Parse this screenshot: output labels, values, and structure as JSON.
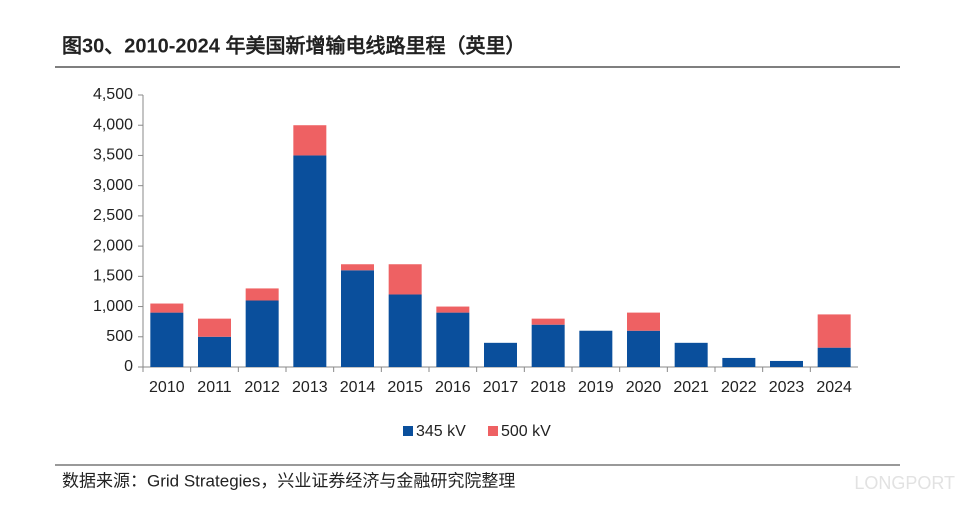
{
  "chart_data": {
    "type": "bar",
    "stacked": true,
    "title": "图30、2010-2024 年美国新增输电线路里程（英里）",
    "source": "数据来源：Grid Strategies，兴业证券经济与金融研究院整理",
    "watermark": "LONGPORT",
    "categories": [
      "2010",
      "2011",
      "2012",
      "2013",
      "2014",
      "2015",
      "2016",
      "2017",
      "2018",
      "2019",
      "2020",
      "2021",
      "2022",
      "2023",
      "2024"
    ],
    "series": [
      {
        "name": "345 kV",
        "color": "#0a4f9c",
        "values": [
          900,
          500,
          1100,
          3500,
          1600,
          1200,
          900,
          400,
          700,
          600,
          600,
          400,
          150,
          100,
          320
        ]
      },
      {
        "name": "500 kV",
        "color": "#ee6163",
        "values": [
          150,
          300,
          200,
          500,
          100,
          500,
          100,
          0,
          100,
          0,
          300,
          0,
          0,
          0,
          550
        ]
      }
    ],
    "ylim": [
      0,
      4500
    ],
    "yticks": [
      0,
      500,
      {
        "value": 1000,
        "label": "1,000"
      },
      {
        "value": 1500,
        "label": "1,500"
      },
      {
        "value": 2000,
        "label": "2,000"
      },
      {
        "value": 2500,
        "label": "2,500"
      },
      {
        "value": 3000,
        "label": "3,000"
      },
      {
        "value": 3500,
        "label": "3,500"
      },
      {
        "value": 4000,
        "label": "4,000"
      },
      {
        "value": 4500,
        "label": "4,500"
      }
    ],
    "grid": false,
    "legend": "bottom"
  }
}
